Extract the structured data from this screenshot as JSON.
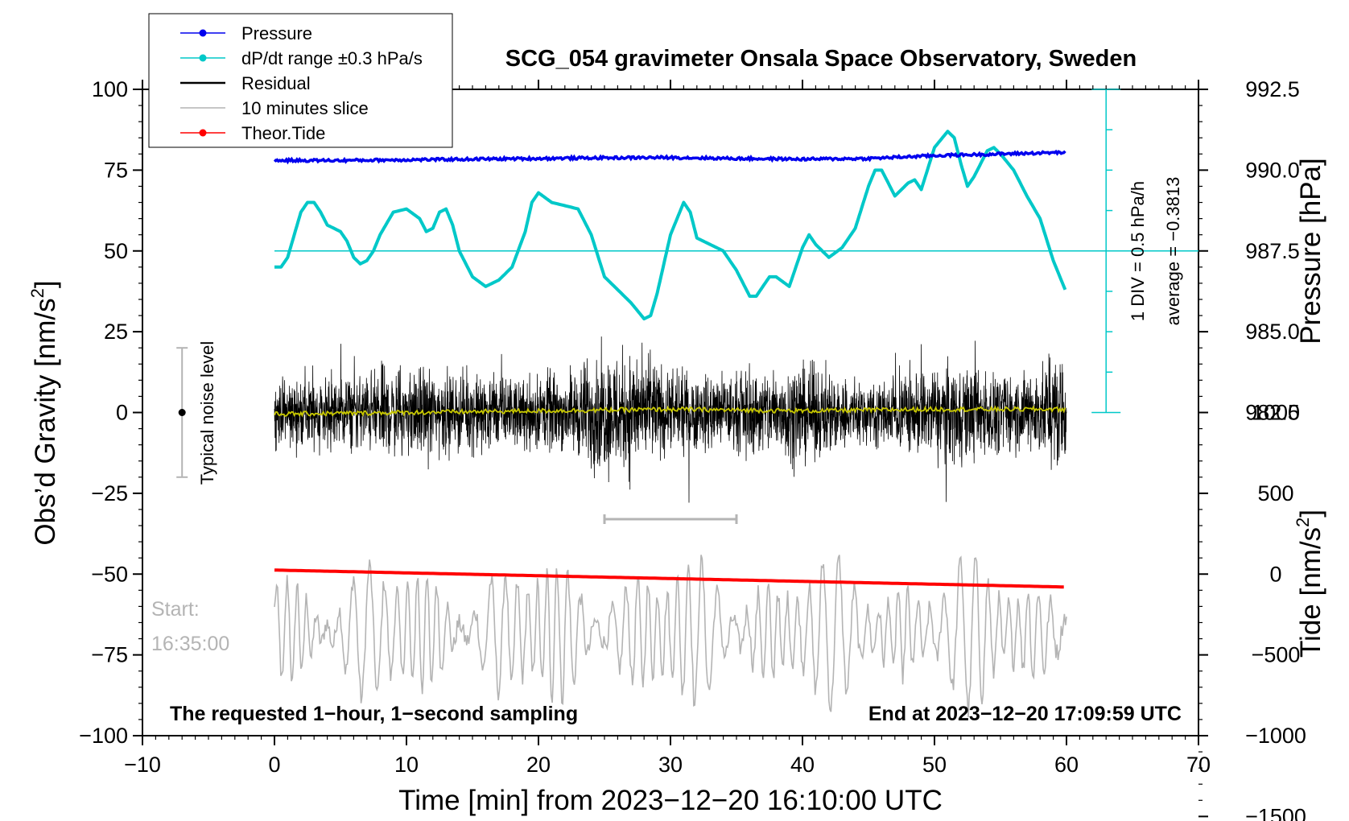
{
  "chart_data": {
    "type": "line",
    "title": "SCG_054 gravimeter Onsala Space Observatory, Sweden",
    "xlabel": "Time [min] from 2023−12−20 16:10:00 UTC",
    "ylabel_left": "Obs’d Gravity [nm/s²]",
    "ylabel_right_top": "Pressure [hPa]",
    "ylabel_right_bottom": "Tide [nm/s²]",
    "xlim": [
      -10,
      70
    ],
    "ylim_left": [
      -100,
      100
    ],
    "xticks": [
      -10,
      0,
      10,
      20,
      30,
      40,
      50,
      60,
      70
    ],
    "xtick_labels": [
      "−10",
      "0",
      "10",
      "20",
      "30",
      "40",
      "50",
      "60",
      "70"
    ],
    "yticks_left": [
      100,
      75,
      50,
      25,
      0,
      -25,
      -50,
      -75,
      -100
    ],
    "ytick_labels_left": [
      "100",
      "75",
      "50",
      "25",
      "0",
      "−25",
      "−50",
      "−75",
      "−100"
    ],
    "pressure_ticks": [
      992.5,
      990.0,
      987.5,
      985.0,
      982.5
    ],
    "pressure_tick_labels": [
      "992.5",
      "990.0",
      "987.5",
      "985.0",
      "982.5"
    ],
    "pressure_axis_map": {
      "value_at_y75": 990.0,
      "units_per_left_unit": 0.1
    },
    "tide_ticks": [
      1000,
      500,
      0,
      -500,
      -1000,
      -1500
    ],
    "tide_tick_labels": [
      "1000",
      "500",
      "0",
      "−500",
      "−1000",
      "−1500"
    ],
    "tide_axis_map": {
      "value_at_y_minus50": 0,
      "units_per_left_unit": 20
    },
    "legend": [
      {
        "label": "Pressure",
        "color": "#0000ee",
        "marker": true
      },
      {
        "label": "dP/dt range ±0.3 hPa/s",
        "color": "#00c8c8",
        "marker": true
      },
      {
        "label": "Residual",
        "color": "#000000",
        "marker": false
      },
      {
        "label": "10 minutes slice",
        "color": "#b4b4b4",
        "marker": false
      },
      {
        "label": "Theor.Tide",
        "color": "#ff0000",
        "marker": true
      }
    ],
    "series": [
      {
        "name": "Pressure",
        "color": "#0000ee",
        "axis": "pressure",
        "x": [
          0,
          5,
          10,
          15,
          20,
          25,
          30,
          35,
          40,
          45,
          50,
          55,
          60
        ],
        "values": [
          990.3,
          990.3,
          990.32,
          990.34,
          990.36,
          990.38,
          990.39,
          990.36,
          990.34,
          990.36,
          990.45,
          990.5,
          990.55
        ]
      },
      {
        "name": "dP/dt",
        "color": "#00c8c8",
        "axis": "left",
        "x": [
          0,
          0.5,
          1,
          1.5,
          2,
          2.5,
          3,
          3.5,
          4,
          5,
          5.5,
          6,
          6.5,
          7,
          7.5,
          8,
          9,
          10,
          11,
          11.5,
          12,
          12.5,
          13,
          13.5,
          14,
          15,
          16,
          17,
          18,
          19,
          19.5,
          20,
          21,
          22,
          23,
          24,
          25,
          26,
          27,
          28,
          28.5,
          29,
          30,
          31,
          31.5,
          32,
          33,
          34,
          35,
          36,
          36.5,
          37,
          37.5,
          38,
          39,
          40,
          40.5,
          41,
          42,
          43,
          44,
          45,
          45.5,
          46,
          46.5,
          47,
          48,
          48.5,
          49,
          50,
          51,
          51.5,
          52,
          52.5,
          53,
          54,
          54.5,
          55,
          56,
          57,
          58,
          59,
          60
        ],
        "values": [
          45,
          45,
          48,
          55,
          62,
          65,
          65,
          62,
          58,
          56,
          53,
          48,
          46,
          47,
          50,
          55,
          62,
          63,
          60,
          56,
          57,
          62,
          63,
          58,
          50,
          42,
          39,
          41,
          45,
          56,
          65,
          68,
          65,
          64,
          63,
          55,
          42,
          38,
          34,
          29,
          30,
          37,
          55,
          65,
          62,
          54,
          52,
          50,
          44,
          36,
          36,
          39,
          42,
          42,
          39,
          51,
          55,
          52,
          48,
          51,
          57,
          70,
          75,
          75,
          71,
          67,
          71,
          72,
          69,
          82,
          87,
          85,
          77,
          70,
          73,
          81,
          82,
          80,
          75,
          67,
          60,
          47,
          37
        ]
      },
      {
        "name": "Residual",
        "color": "#000000",
        "axis": "left",
        "x_range": [
          0,
          60
        ],
        "amplitude_envelope": {
          "x": [
            0,
            2,
            4,
            6,
            8,
            10,
            12,
            14,
            16,
            18,
            20,
            22,
            24,
            26,
            28,
            30,
            32,
            34,
            36,
            38,
            40,
            42,
            44,
            46,
            48,
            50,
            52,
            54,
            56,
            58,
            60
          ],
          "values": [
            12,
            18,
            18,
            15,
            20,
            18,
            20,
            16,
            17,
            14,
            18,
            16,
            25,
            28,
            24,
            18,
            17,
            16,
            18,
            20,
            22,
            18,
            15,
            14,
            18,
            20,
            22,
            18,
            17,
            20,
            26
          ]
        }
      },
      {
        "name": "Residual mean",
        "color": "#c8c800",
        "axis": "left",
        "x": [
          0,
          10,
          20,
          30,
          40,
          50,
          60
        ],
        "values": [
          -0.5,
          0,
          0.5,
          1,
          0.5,
          1,
          1
        ]
      },
      {
        "name": "10 minutes slice",
        "color": "#b4b4b4",
        "axis": "left",
        "x_range": [
          0,
          60
        ],
        "center": -68,
        "amplitude": 24
      },
      {
        "name": "Theor.Tide",
        "color": "#ff0000",
        "axis": "tide",
        "x": [
          0,
          60
        ],
        "values": [
          25,
          -80
        ]
      }
    ],
    "annotations": {
      "noise_label": "Typical noise level",
      "noise_bar": {
        "x": -7,
        "center": 0,
        "half_range": 20
      },
      "slice_bracket": {
        "x_start": 25,
        "x_end": 35,
        "y": -33
      },
      "div_label": "1 DIV = 0.5 hPa/h",
      "avg_label": "average = −0.3813",
      "dpdt_scale": {
        "x": 63,
        "y_top": 100,
        "y_bottom": 0,
        "step": 8
      },
      "dpdt_reference_level": 50,
      "start_label_1": "Start:",
      "start_label_2": "16:35:00",
      "bottom_left": "The requested 1−hour, 1−second sampling",
      "bottom_right": "End at 2023−12−20 17:09:59 UTC"
    }
  }
}
